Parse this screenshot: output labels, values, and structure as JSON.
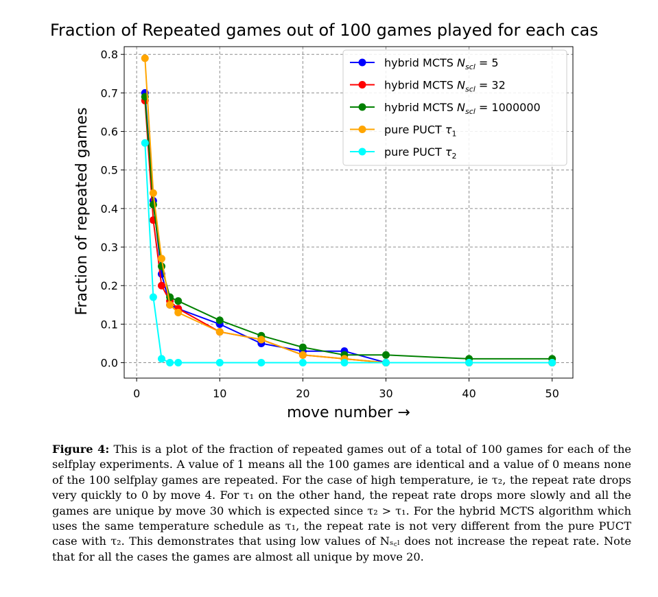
{
  "chart_data": {
    "type": "line",
    "title": "Fraction of Repeated games out of 100 games played for each cas",
    "xlabel": "move number →",
    "ylabel": "Fraction of repeated games",
    "xlim": [
      -1.5,
      52.5
    ],
    "ylim": [
      -0.04,
      0.82
    ],
    "xticks": [
      0,
      10,
      20,
      30,
      40,
      50
    ],
    "xtick_labels": [
      "0",
      "10",
      "20",
      "30",
      "40",
      "50"
    ],
    "yticks": [
      0.0,
      0.1,
      0.2,
      0.3,
      0.4,
      0.5,
      0.6,
      0.7,
      0.8
    ],
    "ytick_labels": [
      "0.0",
      "0.1",
      "0.2",
      "0.3",
      "0.4",
      "0.5",
      "0.6",
      "0.7",
      "0.8"
    ],
    "grid": true,
    "legend_position": "top-right",
    "x": [
      1,
      2,
      3,
      4,
      5,
      10,
      15,
      20,
      25,
      30,
      40,
      50
    ],
    "series": [
      {
        "name_prefix": "hybrid MCTS ",
        "name_sym": "N",
        "name_sub": "scl",
        "name_suffix": " = 5",
        "color": "#0000ff",
        "values": [
          0.7,
          0.42,
          0.23,
          0.15,
          0.14,
          0.1,
          0.05,
          0.03,
          0.03,
          0.0,
          0.0,
          0.0
        ]
      },
      {
        "name_prefix": "hybrid MCTS ",
        "name_sym": "N",
        "name_sub": "scl",
        "name_suffix": " = 32",
        "color": "#ff0000",
        "values": [
          0.68,
          0.37,
          0.2,
          0.16,
          0.14,
          0.08,
          0.06,
          0.02,
          0.01,
          0.0,
          0.0,
          0.0
        ]
      },
      {
        "name_prefix": "hybrid MCTS ",
        "name_sym": "N",
        "name_sub": "scl",
        "name_suffix": " = 1000000",
        "color": "#008000",
        "values": [
          0.69,
          0.41,
          0.25,
          0.17,
          0.16,
          0.11,
          0.07,
          0.04,
          0.02,
          0.02,
          0.01,
          0.01
        ]
      },
      {
        "name_prefix": "pure PUCT ",
        "name_sym": "τ",
        "name_sub": "1",
        "name_suffix": "",
        "color": "#ffa500",
        "values": [
          0.79,
          0.44,
          0.27,
          0.15,
          0.13,
          0.08,
          0.06,
          0.02,
          0.01,
          0.0,
          0.0,
          0.0
        ]
      },
      {
        "name_prefix": "pure PUCT ",
        "name_sym": "τ",
        "name_sub": "2",
        "name_suffix": "",
        "color": "#00ffff",
        "values": [
          0.57,
          0.17,
          0.01,
          0.0,
          0.0,
          0.0,
          0.0,
          0.0,
          0.0,
          0.0,
          0.0,
          0.0
        ]
      }
    ]
  },
  "caption": {
    "label": "Figure 4:",
    "text": " This is a plot of the fraction of repeated games out of a total of 100 games for each of the selfplay experiments. A value of 1 means all the 100 games are identical and a value of 0 means none of the 100 selfplay games are repeated. For the case of high temperature, ie τ₂, the repeat rate drops very quickly to 0 by move 4. For τ₁ on the other hand, the repeat rate drops more slowly and all the games are unique by move 30 which is expected since τ₂ > τ₁. For the hybrid MCTS algorithm which uses the same temperature schedule as τ₁, the repeat rate is not very different from the pure PUCT case with τ₂. This demonstrates that using low values of Nₛ꜀ₗ does not increase the repeat rate. Note that for all the cases the games are almost all unique by move 20."
  }
}
